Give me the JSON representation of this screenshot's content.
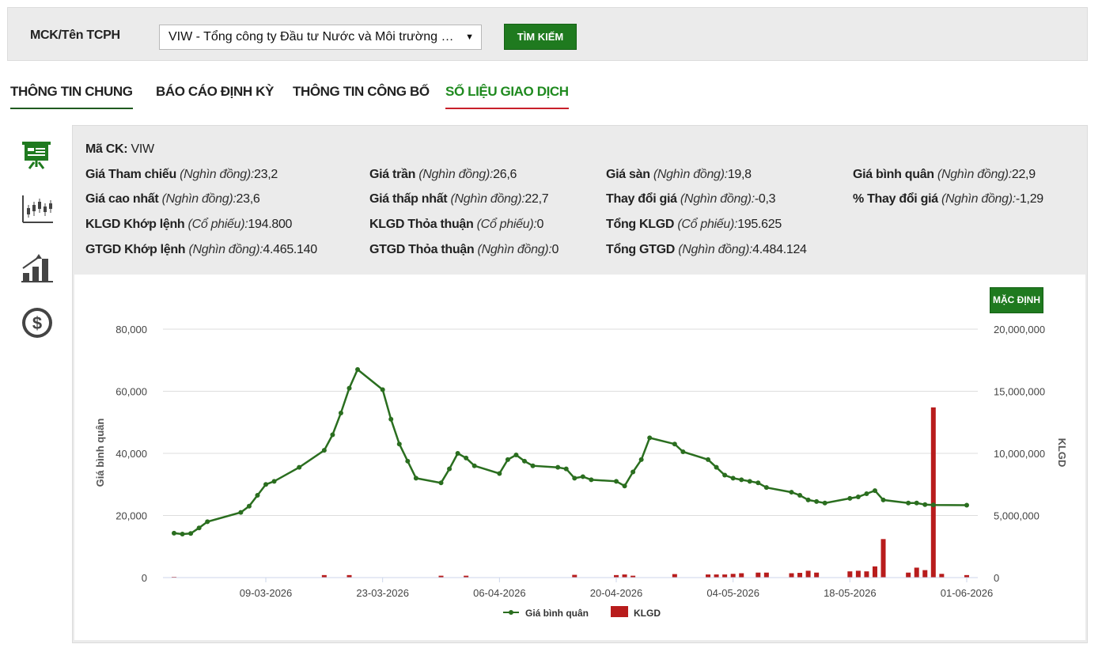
{
  "search": {
    "label": "MCK/Tên TCPH",
    "selected": "VIW - Tổng công ty Đầu tư Nước và Môi trường Việt Nam",
    "button": "TÌM KIẾM"
  },
  "tabs": [
    {
      "label": "THÔNG TIN CHUNG"
    },
    {
      "label": "BÁO CÁO ĐỊNH KỲ"
    },
    {
      "label": "THÔNG TIN CÔNG BỐ"
    },
    {
      "label": "SỐ LIỆU GIAO DỊCH",
      "active": true
    }
  ],
  "sidebar": {
    "icons": [
      "presentation-icon",
      "candlestick-icon",
      "bar-growth-icon",
      "dollar-coin-icon"
    ]
  },
  "info": {
    "ma_ck": {
      "label": "Mã CK:",
      "value": "VIW"
    },
    "rows": [
      [
        {
          "label": "Giá Tham chiếu",
          "unit": "(Nghìn đồng):",
          "value": "23,2"
        },
        {
          "label": "Giá trần",
          "unit": "(Nghìn đồng):",
          "value": "26,6"
        },
        {
          "label": "Giá sàn",
          "unit": "(Nghìn đồng):",
          "value": "19,8"
        },
        {
          "label": "Giá bình quân",
          "unit": "(Nghìn đồng):",
          "value": "22,9"
        }
      ],
      [
        {
          "label": "Giá cao nhất",
          "unit": "(Nghìn đồng):",
          "value": "23,6"
        },
        {
          "label": "Giá thấp nhất",
          "unit": "(Nghìn đồng):",
          "value": "22,7"
        },
        {
          "label": "Thay đổi giá",
          "unit": "(Nghìn đồng):",
          "value": "-0,3"
        },
        {
          "label": "% Thay đổi giá",
          "unit": "(Nghìn đồng):",
          "value": "-1,29"
        }
      ],
      [
        {
          "label": "KLGD Khớp lệnh",
          "unit": "(Cổ phiếu):",
          "value": "194.800"
        },
        {
          "label": "KLGD Thỏa thuận",
          "unit": "(Cổ phiếu):",
          "value": "0"
        },
        {
          "label": "Tổng KLGD",
          "unit": "(Cổ phiếu):",
          "value": "195.625"
        }
      ],
      [
        {
          "label": "GTGD Khớp lệnh",
          "unit": "(Nghìn đồng):",
          "value": "4.465.140"
        },
        {
          "label": "GTGD Thỏa thuận",
          "unit": "(Nghìn đồng):",
          "value": "0"
        },
        {
          "label": "Tổng GTGD",
          "unit": "(Nghìn đồng):",
          "value": "4.484.124"
        }
      ]
    ]
  },
  "chart_controls": {
    "default_button": "MẶC ĐỊNH"
  },
  "chart_data": {
    "type": "line",
    "ylabel": "Giá bình quân",
    "y2label": "KLGD",
    "ylim": [
      0,
      80000
    ],
    "y2lim": [
      0,
      20000000
    ],
    "yticks": [
      "0",
      "20,000",
      "40,000",
      "60,000",
      "80,000"
    ],
    "y2ticks": [
      "0",
      "5,000,000",
      "10,000,000",
      "15,000,000",
      "20,000,000"
    ],
    "xticks": [
      "09-03-2026",
      "23-03-2026",
      "06-04-2026",
      "20-04-2026",
      "04-05-2026",
      "18-05-2026",
      "01-06-2026"
    ],
    "grid": true,
    "legend_position": "bottom",
    "colors": {
      "line": "#2a6e1f",
      "bar": "#b81c1c",
      "grid": "#dddddd"
    },
    "series": [
      {
        "name": "Giá bình quân",
        "type": "line",
        "x": [
          "2026-02-26",
          "2026-02-27",
          "2026-02-28",
          "2026-03-01",
          "2026-03-02",
          "2026-03-06",
          "2026-03-07",
          "2026-03-08",
          "2026-03-09",
          "2026-03-10",
          "2026-03-13",
          "2026-03-16",
          "2026-03-17",
          "2026-03-18",
          "2026-03-19",
          "2026-03-20",
          "2026-03-23",
          "2026-03-24",
          "2026-03-25",
          "2026-03-26",
          "2026-03-27",
          "2026-03-30",
          "2026-03-31",
          "2026-04-01",
          "2026-04-02",
          "2026-04-03",
          "2026-04-06",
          "2026-04-07",
          "2026-04-08",
          "2026-04-09",
          "2026-04-10",
          "2026-04-13",
          "2026-04-14",
          "2026-04-15",
          "2026-04-16",
          "2026-04-17",
          "2026-04-20",
          "2026-04-21",
          "2026-04-22",
          "2026-04-23",
          "2026-04-24",
          "2026-04-27",
          "2026-04-28",
          "2026-05-01",
          "2026-05-02",
          "2026-05-03",
          "2026-05-04",
          "2026-05-05",
          "2026-05-06",
          "2026-05-07",
          "2026-05-08",
          "2026-05-11",
          "2026-05-12",
          "2026-05-13",
          "2026-05-14",
          "2026-05-15",
          "2026-05-18",
          "2026-05-19",
          "2026-05-20",
          "2026-05-21",
          "2026-05-22",
          "2026-05-25",
          "2026-05-26",
          "2026-05-27",
          "2026-05-28",
          "2026-06-01"
        ],
        "values": [
          14300,
          14000,
          14200,
          16000,
          18000,
          21000,
          23000,
          26500,
          30000,
          31000,
          35500,
          41000,
          46000,
          53000,
          61000,
          67000,
          60500,
          51000,
          43000,
          37500,
          32000,
          30500,
          35000,
          40000,
          38500,
          36000,
          33500,
          38000,
          39500,
          37500,
          36000,
          35500,
          35000,
          32000,
          32500,
          31500,
          31000,
          29500,
          34000,
          38000,
          45000,
          43000,
          40500,
          38000,
          35500,
          33000,
          32000,
          31500,
          31000,
          30500,
          29000,
          27500,
          26500,
          25000,
          24500,
          24000,
          25500,
          26000,
          27000,
          28000,
          25000,
          24000,
          24000,
          23500,
          23400,
          23300
        ]
      },
      {
        "name": "KLGD",
        "type": "bar",
        "x": [
          "2026-02-26",
          "2026-03-16",
          "2026-03-19",
          "2026-03-30",
          "2026-04-02",
          "2026-04-15",
          "2026-04-20",
          "2026-04-21",
          "2026-04-22",
          "2026-04-27",
          "2026-05-01",
          "2026-05-02",
          "2026-05-03",
          "2026-05-04",
          "2026-05-05",
          "2026-05-07",
          "2026-05-08",
          "2026-05-11",
          "2026-05-12",
          "2026-05-13",
          "2026-05-14",
          "2026-05-18",
          "2026-05-19",
          "2026-05-20",
          "2026-05-21",
          "2026-05-22",
          "2026-05-25",
          "2026-05-26",
          "2026-05-27",
          "2026-05-28",
          "2026-05-29",
          "2026-06-01"
        ],
        "values": [
          60000,
          200000,
          200000,
          150000,
          150000,
          220000,
          200000,
          250000,
          150000,
          280000,
          250000,
          250000,
          250000,
          300000,
          350000,
          400000,
          400000,
          350000,
          380000,
          550000,
          400000,
          500000,
          550000,
          500000,
          900000,
          3100000,
          400000,
          800000,
          600000,
          13700000,
          300000,
          200000
        ]
      }
    ]
  }
}
